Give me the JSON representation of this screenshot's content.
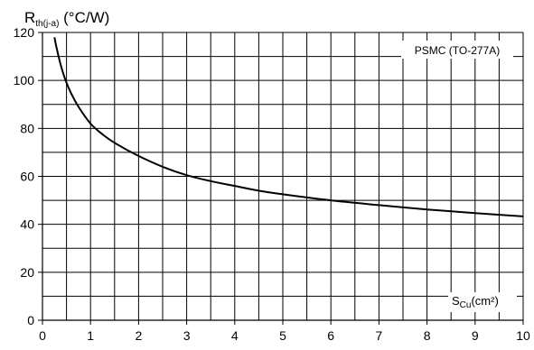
{
  "chart_data": {
    "type": "line",
    "xlabel": {
      "main": "S",
      "sub": "Cu",
      "unit": "(cm²)"
    },
    "ylabel": {
      "main": "R",
      "sub": "th(j-a)",
      "unit": " (°C/W)"
    },
    "xlim": [
      0,
      10
    ],
    "ylim": [
      0,
      120
    ],
    "x_ticks": [
      "0",
      "1",
      "2",
      "3",
      "4",
      "5",
      "6",
      "7",
      "8",
      "9",
      "10"
    ],
    "y_ticks": [
      "0",
      "20",
      "40",
      "60",
      "80",
      "100",
      "120"
    ],
    "grid": true,
    "series": [
      {
        "name": "PSMC (TO-277A)",
        "x": [
          0.25,
          0.3,
          0.4,
          0.5,
          0.6,
          0.75,
          1,
          1.25,
          1.5,
          2,
          2.5,
          3,
          3.5,
          4,
          4.5,
          5,
          6,
          7,
          8,
          9,
          10
        ],
        "y": [
          118,
          113,
          105,
          99,
          94.5,
          89,
          82,
          77.5,
          74,
          68.5,
          64,
          60.5,
          58,
          56,
          54,
          52.5,
          50,
          48,
          46.2,
          44.7,
          43.3
        ]
      }
    ]
  }
}
